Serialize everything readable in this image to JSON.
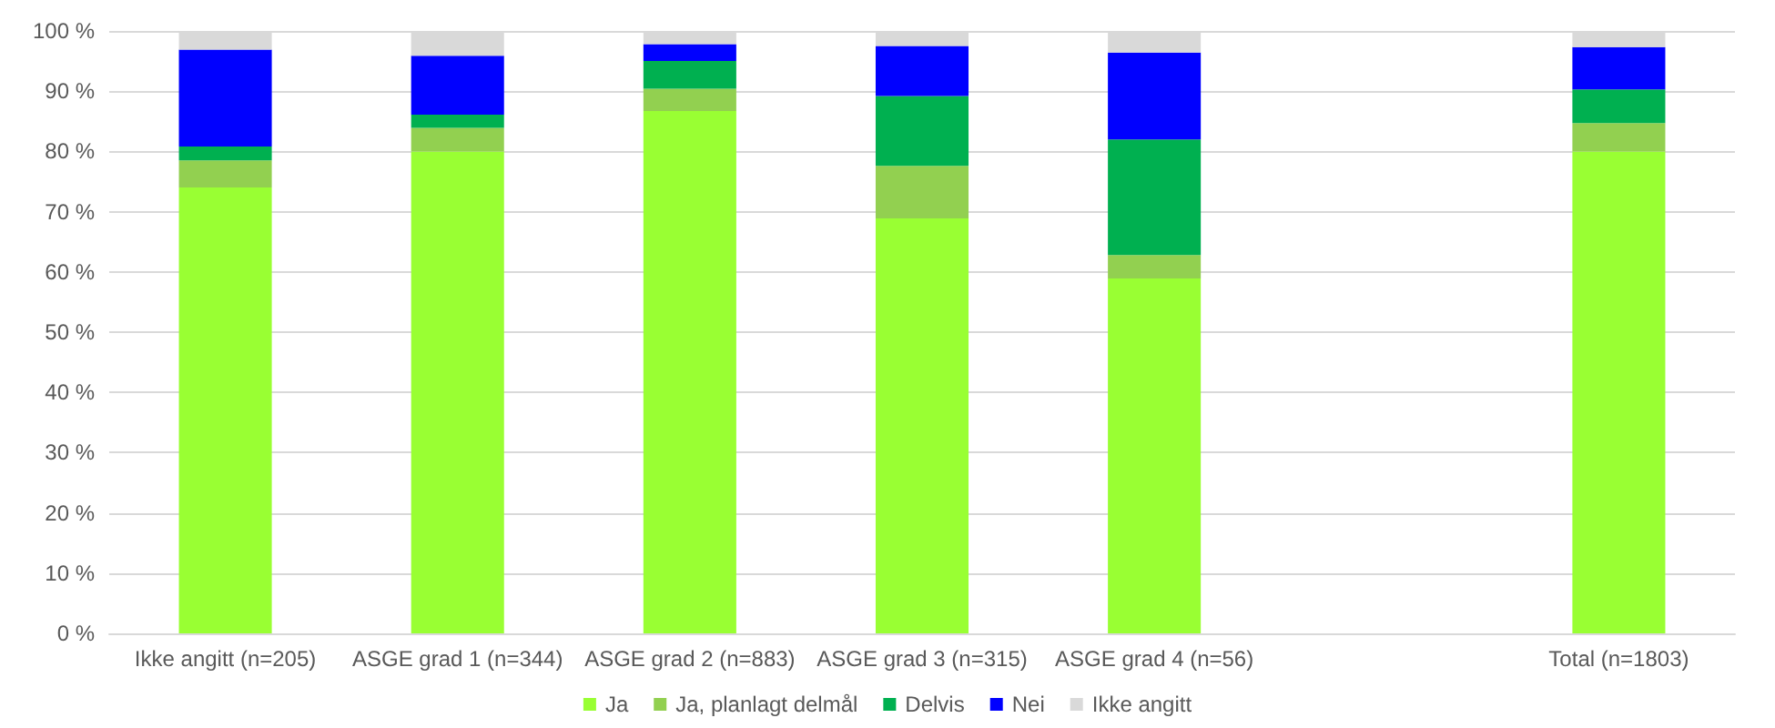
{
  "chart_data": {
    "type": "bar",
    "stacked": true,
    "categories": [
      "Ikke angitt (n=205)",
      "ASGE grad 1 (n=344)",
      "ASGE grad 2 (n=883)",
      "ASGE grad 3 (n=315)",
      "ASGE grad 4 (n=56)",
      null,
      "Total (n=1803)"
    ],
    "series": [
      {
        "name": "Ja",
        "color": "#99ff33",
        "values": [
          74.0,
          80.0,
          86.7,
          68.9,
          58.9,
          null,
          80.0
        ]
      },
      {
        "name": "Ja, planlagt delmål",
        "color": "#92d050",
        "values": [
          4.5,
          3.9,
          3.7,
          8.7,
          3.9,
          null,
          4.7
        ]
      },
      {
        "name": "Delvis",
        "color": "#00b050",
        "values": [
          2.3,
          2.2,
          4.6,
          11.6,
          19.2,
          null,
          5.6
        ]
      },
      {
        "name": "Nei",
        "color": "#0000ff",
        "values": [
          16.1,
          9.8,
          2.8,
          8.3,
          14.4,
          null,
          7.0
        ]
      },
      {
        "name": "Ikke angitt",
        "color": "#d9d9d9",
        "values": [
          3.1,
          4.1,
          2.2,
          2.5,
          3.6,
          null,
          2.7
        ]
      }
    ],
    "ylim": [
      0,
      100
    ],
    "yticks": [
      {
        "value": 0,
        "label": "0 %"
      },
      {
        "value": 10,
        "label": "10 %"
      },
      {
        "value": 20,
        "label": "20 %"
      },
      {
        "value": 30,
        "label": "30 %"
      },
      {
        "value": 40,
        "label": "40 %"
      },
      {
        "value": 50,
        "label": "50 %"
      },
      {
        "value": 60,
        "label": "60 %"
      },
      {
        "value": 70,
        "label": "70 %"
      },
      {
        "value": 80,
        "label": "80 %"
      },
      {
        "value": 90,
        "label": "90 %"
      },
      {
        "value": 100,
        "label": "100 %"
      }
    ],
    "grid": "y",
    "legend": "bottom"
  }
}
